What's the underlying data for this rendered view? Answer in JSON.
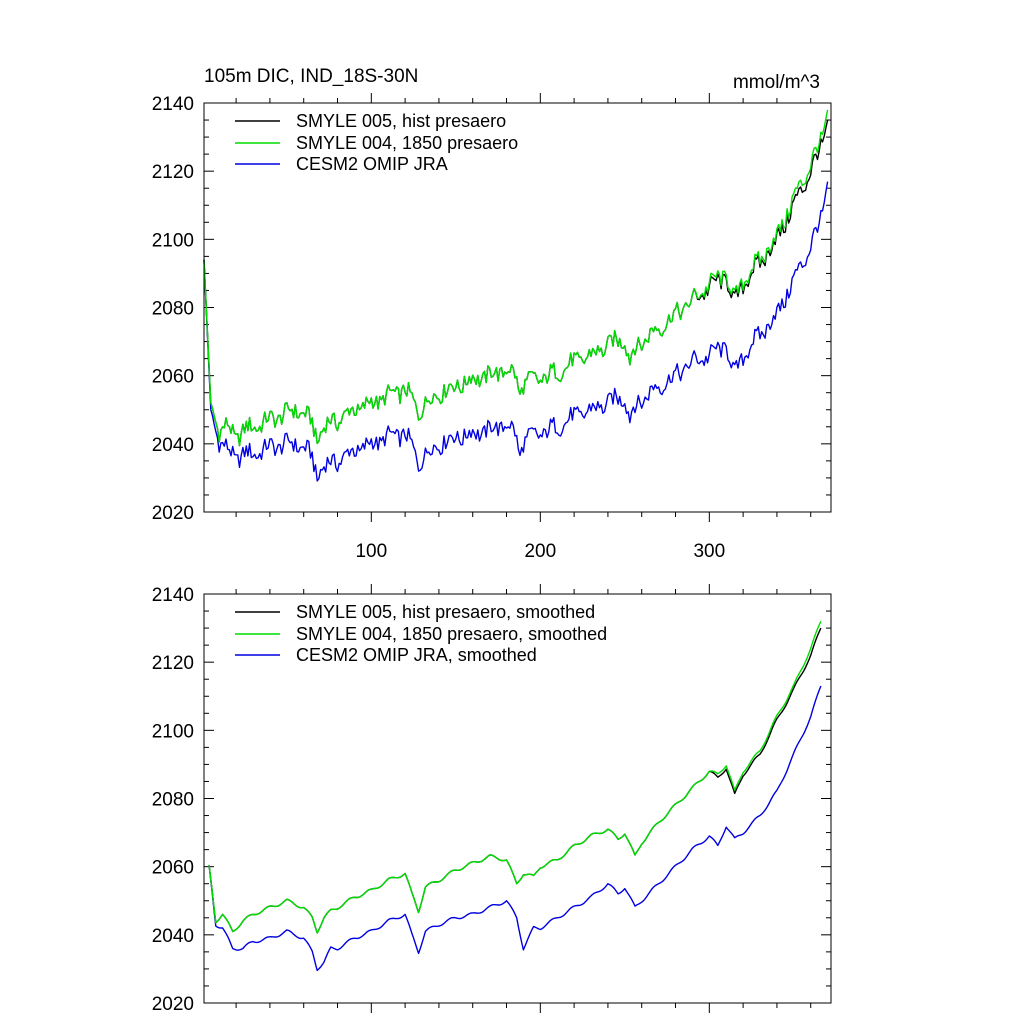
{
  "colors": {
    "hist": "#000000",
    "presaero1850": "#00dd00",
    "omip": "#0000e0"
  },
  "chart_data": [
    {
      "type": "line",
      "title": "105m DIC, IND_18S-30N",
      "units": "mmol/m^3",
      "xlabel": "",
      "ylabel": "",
      "xlim": [
        1,
        372
      ],
      "ylim": [
        2020,
        2140
      ],
      "xticks": [
        100,
        200,
        300
      ],
      "xtick_labels": [
        "100",
        "200",
        "300"
      ],
      "yticks": [
        2020,
        2040,
        2060,
        2080,
        2100,
        2120,
        2140
      ],
      "ytick_labels": [
        "2020",
        "2040",
        "2060",
        "2080",
        "2100",
        "2120",
        "2140"
      ],
      "smoothed": false,
      "legend_position": "top-left",
      "series": [
        {
          "name": "SMYLE 005, hist presaero",
          "color_key": "hist",
          "x": [
            1,
            5,
            10,
            15,
            20,
            25,
            30,
            40,
            50,
            55,
            60,
            65,
            68,
            70,
            75,
            80,
            90,
            100,
            110,
            120,
            125,
            128,
            130,
            140,
            150,
            160,
            170,
            180,
            185,
            188,
            190,
            200,
            210,
            220,
            230,
            240,
            250,
            253,
            255,
            260,
            270,
            280,
            290,
            300,
            310,
            315,
            320,
            330,
            340,
            350,
            360,
            366,
            370
          ],
          "values": [
            2094,
            2052,
            2044,
            2045,
            2042,
            2044,
            2045,
            2047,
            2049,
            2050,
            2049,
            2046,
            2041,
            2044,
            2046,
            2047,
            2050,
            2052,
            2054,
            2056,
            2052,
            2049,
            2051,
            2055,
            2057,
            2059,
            2060,
            2062,
            2060,
            2055,
            2058,
            2059,
            2061,
            2064,
            2066,
            2069,
            2071,
            2064,
            2067,
            2070,
            2074,
            2078,
            2082,
            2086,
            2089,
            2081,
            2087,
            2093,
            2100,
            2110,
            2120,
            2127,
            2134
          ]
        },
        {
          "name": "SMYLE 004, 1850 presaero",
          "color_key": "presaero1850",
          "x": [
            1,
            5,
            10,
            15,
            20,
            25,
            30,
            40,
            50,
            55,
            60,
            65,
            68,
            70,
            75,
            80,
            90,
            100,
            110,
            120,
            125,
            128,
            130,
            140,
            150,
            160,
            170,
            180,
            185,
            188,
            190,
            200,
            210,
            220,
            230,
            240,
            250,
            253,
            255,
            260,
            270,
            280,
            290,
            300,
            310,
            315,
            320,
            330,
            340,
            350,
            360,
            366,
            370
          ],
          "values": [
            2094,
            2052,
            2044,
            2045,
            2042,
            2044,
            2045,
            2047,
            2049,
            2050,
            2049,
            2046,
            2041,
            2044,
            2046,
            2047,
            2050,
            2052,
            2054,
            2056,
            2052,
            2049,
            2051,
            2055,
            2057,
            2059,
            2060,
            2062,
            2060,
            2055,
            2058,
            2059,
            2061,
            2064,
            2066,
            2069,
            2071,
            2064,
            2067,
            2070,
            2074,
            2078,
            2082,
            2087,
            2090,
            2082,
            2088,
            2094,
            2101,
            2112,
            2122,
            2129,
            2137
          ]
        },
        {
          "name": "CESM2 OMIP JRA",
          "color_key": "omip",
          "x": [
            1,
            5,
            10,
            15,
            20,
            25,
            30,
            40,
            50,
            55,
            60,
            65,
            68,
            70,
            75,
            80,
            90,
            100,
            110,
            120,
            125,
            128,
            130,
            140,
            150,
            160,
            170,
            180,
            185,
            188,
            190,
            200,
            210,
            220,
            230,
            240,
            250,
            253,
            255,
            260,
            270,
            280,
            290,
            300,
            310,
            315,
            320,
            330,
            340,
            350,
            360,
            366,
            370
          ],
          "values": [
            2094,
            2050,
            2041,
            2038,
            2036,
            2037,
            2037,
            2039,
            2040,
            2040,
            2039,
            2036,
            2030,
            2033,
            2034,
            2035,
            2038,
            2040,
            2042,
            2043,
            2038,
            2034,
            2036,
            2040,
            2042,
            2043,
            2044,
            2046,
            2043,
            2037,
            2041,
            2043,
            2045,
            2048,
            2050,
            2052,
            2054,
            2047,
            2050,
            2053,
            2057,
            2060,
            2064,
            2066,
            2069,
            2060,
            2066,
            2072,
            2078,
            2088,
            2098,
            2106,
            2116
          ]
        }
      ]
    },
    {
      "type": "line",
      "title": "",
      "xlabel": "",
      "ylabel": "",
      "xlim": [
        1,
        372
      ],
      "ylim": [
        2020,
        2140
      ],
      "xticks": [
        100,
        200,
        300
      ],
      "yticks": [
        2020,
        2040,
        2060,
        2080,
        2100,
        2120,
        2140
      ],
      "ytick_labels": [
        "2020",
        "2040",
        "2060",
        "2080",
        "2100",
        "2120",
        "2140"
      ],
      "smoothed": true,
      "legend_position": "top-left",
      "series": [
        {
          "name": "SMYLE 005, hist presaero, smoothed",
          "color_key": "hist",
          "x": [
            4,
            8,
            12,
            18,
            24,
            30,
            40,
            50,
            55,
            60,
            65,
            68,
            72,
            76,
            80,
            90,
            100,
            110,
            120,
            124,
            128,
            132,
            140,
            150,
            160,
            170,
            180,
            186,
            190,
            196,
            200,
            210,
            220,
            230,
            240,
            246,
            250,
            256,
            260,
            270,
            280,
            290,
            300,
            305,
            310,
            315,
            320,
            330,
            340,
            350,
            360,
            366
          ],
          "values": [
            2060,
            2044,
            2046,
            2041,
            2044,
            2046,
            2048,
            2050,
            2049,
            2048,
            2045,
            2041,
            2045,
            2047,
            2048,
            2051,
            2053,
            2056,
            2058,
            2052,
            2047,
            2054,
            2056,
            2059,
            2061,
            2063,
            2062,
            2055,
            2058,
            2057,
            2060,
            2062,
            2066,
            2069,
            2071,
            2068,
            2070,
            2063,
            2067,
            2073,
            2078,
            2083,
            2088,
            2086,
            2089,
            2081,
            2087,
            2093,
            2103,
            2112,
            2122,
            2130
          ]
        },
        {
          "name": "SMYLE 004, 1850 presaero, smoothed",
          "color_key": "presaero1850",
          "x": [
            4,
            8,
            12,
            18,
            24,
            30,
            40,
            50,
            55,
            60,
            65,
            68,
            72,
            76,
            80,
            90,
            100,
            110,
            120,
            124,
            128,
            132,
            140,
            150,
            160,
            170,
            180,
            186,
            190,
            196,
            200,
            210,
            220,
            230,
            240,
            246,
            250,
            256,
            260,
            270,
            280,
            290,
            300,
            305,
            310,
            315,
            320,
            330,
            340,
            350,
            360,
            366
          ],
          "values": [
            2060,
            2044,
            2046,
            2041,
            2044,
            2046,
            2048,
            2050,
            2049,
            2048,
            2045,
            2041,
            2045,
            2047,
            2048,
            2051,
            2053,
            2056,
            2058,
            2052,
            2047,
            2054,
            2056,
            2059,
            2061,
            2063,
            2062,
            2055,
            2058,
            2057,
            2060,
            2062,
            2066,
            2069,
            2071,
            2068,
            2070,
            2063,
            2067,
            2073,
            2078,
            2083,
            2088,
            2087,
            2090,
            2082,
            2088,
            2094,
            2104,
            2113,
            2124,
            2132
          ]
        },
        {
          "name": "CESM2 OMIP JRA, smoothed",
          "color_key": "omip",
          "x": [
            4,
            8,
            12,
            18,
            24,
            30,
            40,
            50,
            55,
            60,
            65,
            68,
            72,
            76,
            80,
            90,
            100,
            110,
            120,
            124,
            128,
            132,
            140,
            150,
            160,
            170,
            180,
            186,
            190,
            196,
            200,
            210,
            220,
            230,
            240,
            246,
            250,
            256,
            260,
            270,
            280,
            290,
            300,
            305,
            310,
            315,
            320,
            330,
            340,
            350,
            360,
            366
          ],
          "values": [
            2060,
            2043,
            2042,
            2036,
            2036,
            2038,
            2039,
            2041,
            2040,
            2039,
            2035,
            2030,
            2032,
            2036,
            2036,
            2039,
            2041,
            2044,
            2046,
            2040,
            2035,
            2041,
            2043,
            2045,
            2046,
            2048,
            2050,
            2045,
            2036,
            2042,
            2042,
            2045,
            2048,
            2051,
            2055,
            2052,
            2054,
            2048,
            2050,
            2055,
            2060,
            2065,
            2069,
            2066,
            2072,
            2068,
            2070,
            2075,
            2082,
            2093,
            2104,
            2113
          ]
        }
      ]
    }
  ]
}
